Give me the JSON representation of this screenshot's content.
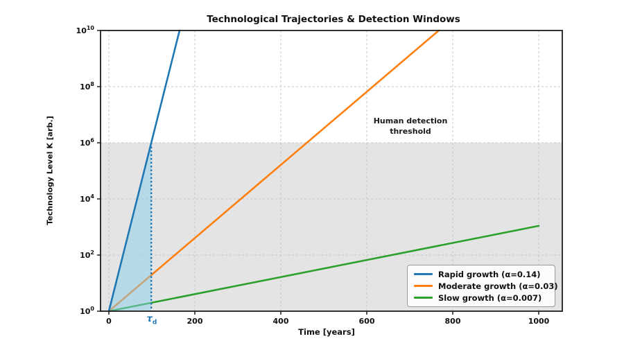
{
  "chart_data": {
    "type": "line",
    "title": "Technological Trajectories & Detection Windows",
    "xlabel": "Time [years]",
    "ylabel": "Technology Level K [arb.]",
    "x_ticks": [
      0,
      200,
      400,
      600,
      800,
      1000
    ],
    "x_range": [
      0,
      1000
    ],
    "y_scale": "log",
    "y_tick_exponents": [
      0,
      2,
      4,
      6,
      8,
      10
    ],
    "ylim": [
      1,
      10000000000
    ],
    "grid": true,
    "legend_position": "lower right",
    "model": "K(t) = exp(alpha * t)",
    "series": [
      {
        "name": "Rapid growth (α=0.14)",
        "alpha": 0.14,
        "color": "#1f77b4",
        "sample_points": [
          [
            0,
            1
          ],
          [
            50,
            1100
          ],
          [
            100,
            1200000
          ],
          [
            164.5,
            10000000000
          ]
        ]
      },
      {
        "name": "Moderate growth (α=0.03)",
        "alpha": 0.03,
        "color": "#ff7f0e",
        "sample_points": [
          [
            0,
            1
          ],
          [
            200,
            403
          ],
          [
            400,
            163000
          ],
          [
            600,
            65700000
          ],
          [
            767.5,
            10000000000
          ]
        ]
      },
      {
        "name": "Slow growth (α=0.007)",
        "alpha": 0.007,
        "color": "#2ca02c",
        "sample_points": [
          [
            0,
            1
          ],
          [
            200,
            4.1
          ],
          [
            400,
            16.4
          ],
          [
            600,
            66.7
          ],
          [
            800,
            270
          ],
          [
            1000,
            1097
          ]
        ]
      }
    ],
    "detection": {
      "threshold": 1000000,
      "threshold_exponent": 6,
      "region_color": "#e4e4e4",
      "annotation": "Human detection\nthreshold",
      "tau_d_years": 98.7,
      "tau_d_label": {
        "symbol": "τ",
        "subscript": "d"
      },
      "tau_line_color": "#1f77b4",
      "window_fill_color": "rgba(135,206,235,0.5)"
    },
    "grid_color": "#c6c6c6",
    "spine_color": "#1c1c1c"
  }
}
